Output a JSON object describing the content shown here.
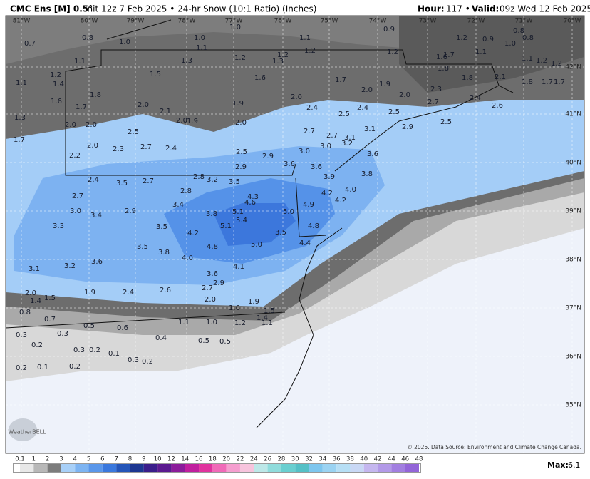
{
  "header": {
    "model": "CMC Ens [M] 0.5°",
    "description": "Init 12z 7 Feb 2025 • 24-hr Snow (10:1 Ratio) (Inches)",
    "hour_label": "Hour:",
    "hour": "117 •",
    "valid_label": "Valid:",
    "valid": "09z Wed 12 Feb 2025"
  },
  "longitudes": [
    "81°W",
    "80°W",
    "79°W",
    "78°W",
    "77°W",
    "76°W",
    "75°W",
    "74°W",
    "73°W",
    "72°W",
    "71°W",
    "70°W"
  ],
  "latitudes": [
    "42°N",
    "41°N",
    "40°N",
    "39°N",
    "38°N",
    "37°N",
    "36°N",
    "35°N"
  ],
  "map": {
    "values": [
      "0.7",
      "0.8",
      "1.0",
      "1.0",
      "1.1",
      "1.3",
      "1.0",
      "1.2",
      "1.2",
      "1.3",
      "1.1",
      "1.2",
      "0.9",
      "1.2",
      "1.2",
      "0.9",
      "1.0",
      "0.8",
      "0.8",
      "1.6",
      "1.7",
      "1.1",
      "1.2",
      "1.2",
      "1.1",
      "1.8",
      "1.8",
      "2.1",
      "1.8",
      "1.7",
      "1.7",
      "1.1",
      "1.2",
      "1.4",
      "1.5",
      "1.6",
      "1.7",
      "2.0",
      "1.9",
      "2.0",
      "2.3",
      "2.4",
      "2.7",
      "2.6",
      "1.1",
      "1.6",
      "1.8",
      "1.7",
      "1.3",
      "2.0",
      "2.0",
      "2.0",
      "2.1",
      "2.0",
      "1.9",
      "1.9",
      "2.0",
      "2.0",
      "2.4",
      "2.5",
      "2.4",
      "2.5",
      "1.7",
      "2.5",
      "2.0",
      "2.3",
      "2.7",
      "2.4",
      "2.7",
      "2.7",
      "3.1",
      "3.2",
      "3.1",
      "2.9",
      "2.5",
      "2.2",
      "2.5",
      "2.9",
      "3.0",
      "3.0",
      "3.6",
      "2.4",
      "3.5",
      "2.7",
      "2.8",
      "3.2",
      "3.5",
      "2.9",
      "3.6",
      "3.6",
      "3.9",
      "3.8",
      "2.8",
      "2.7",
      "3.4",
      "4.3",
      "4.6",
      "4.2",
      "4.0",
      "4.2",
      "3.0",
      "3.4",
      "2.9",
      "3.8",
      "5.1",
      "5.4",
      "5.0",
      "4.9",
      "3.3",
      "3.5",
      "4.2",
      "5.1",
      "3.5",
      "4.8",
      "5.0",
      "4.8",
      "4.4",
      "3.5",
      "3.8",
      "4.0",
      "3.6",
      "3.1",
      "3.2",
      "4.1",
      "3.6",
      "2.9",
      "2.7",
      "2.4",
      "2.6",
      "2.0",
      "1.5",
      "1.4",
      "1.9",
      "2.0",
      "1.9",
      "1.6",
      "1.5",
      "0.8",
      "0.7",
      "1.2",
      "1.4",
      "1.1",
      "1.0",
      "1.1",
      "0.5",
      "0.6",
      "0.3",
      "0.3",
      "0.4",
      "0.5",
      "0.5",
      "0.2",
      "0.3",
      "0.2",
      "0.1",
      "0.3",
      "0.2",
      "0.2",
      "0.1",
      "0.2"
    ],
    "copyright": "© 2025. Data Source: Environment and Climate Change Canada.",
    "logo": "WeatherBELL"
  },
  "colorbar": {
    "labels": [
      "0.1",
      "1",
      "2",
      "3",
      "4",
      "5",
      "6",
      "7",
      "8",
      "9",
      "10",
      "12",
      "14",
      "16",
      "18",
      "20",
      "22",
      "24",
      "26",
      "28",
      "30",
      "32",
      "34",
      "36",
      "38",
      "40",
      "42",
      "44",
      "46",
      "48"
    ],
    "max_label": "Max:",
    "max": "6.1"
  }
}
